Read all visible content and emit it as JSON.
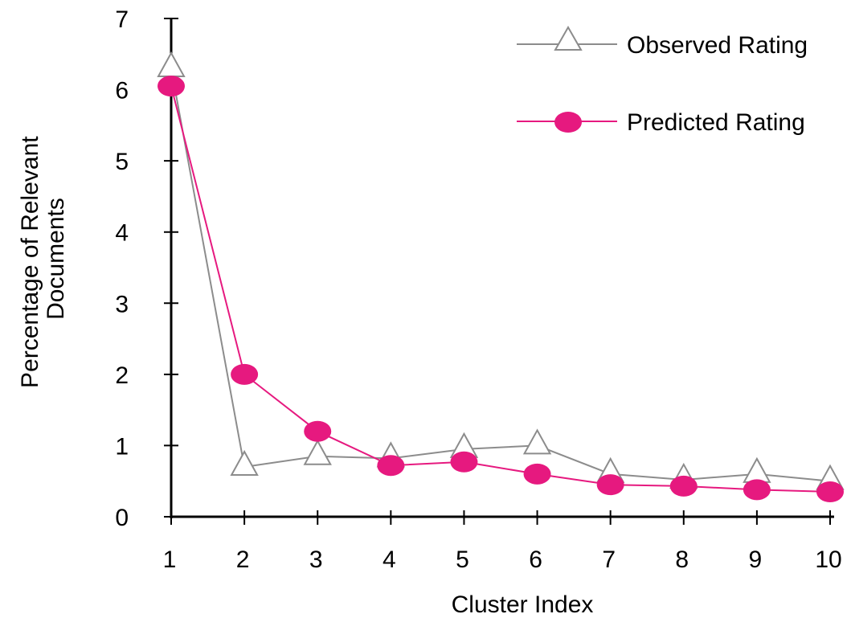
{
  "chart_data": {
    "type": "line",
    "title": "",
    "xlabel": "Cluster Index",
    "ylabel_lines": [
      "Percentage of Relevant",
      "Documents"
    ],
    "x": [
      1,
      2,
      3,
      4,
      5,
      6,
      7,
      8,
      9,
      10
    ],
    "x_ticks": [
      "1",
      "2",
      "3",
      "4",
      "5",
      "6",
      "7",
      "8",
      "9",
      "10"
    ],
    "y_ticks": [
      "0",
      "1",
      "2",
      "3",
      "4",
      "5",
      "6",
      "7"
    ],
    "ylim": [
      0,
      7
    ],
    "xlim": [
      1,
      10
    ],
    "grid": false,
    "legend_position": "top-right",
    "series": [
      {
        "name": "Observed Rating",
        "marker": "triangle-open",
        "color": "#8c8c8c",
        "values": [
          6.3,
          0.7,
          0.85,
          0.82,
          0.95,
          1.0,
          0.6,
          0.52,
          0.6,
          0.5
        ]
      },
      {
        "name": "Predicted Rating",
        "marker": "circle-filled",
        "color": "#e6197f",
        "values": [
          6.05,
          2.0,
          1.2,
          0.72,
          0.77,
          0.6,
          0.45,
          0.43,
          0.38,
          0.35
        ]
      }
    ]
  }
}
